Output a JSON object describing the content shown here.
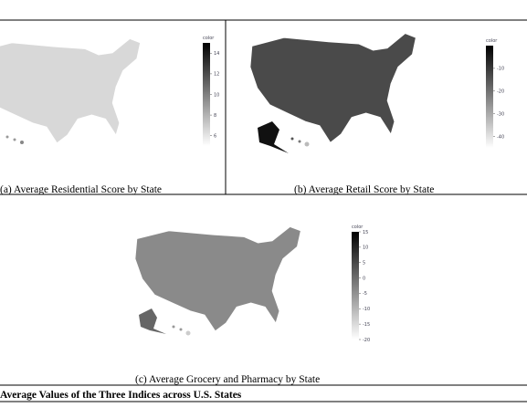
{
  "panels": [
    {
      "caption": "(a)  Average Residential Score by State",
      "colorbar": {
        "title": "color",
        "range": [
          5,
          15
        ],
        "ticks": [
          6,
          8,
          10,
          12,
          14
        ]
      }
    },
    {
      "caption": "(b)  Average Retail Score by State",
      "colorbar": {
        "title": "color",
        "range": [
          -45,
          0
        ],
        "ticks": [
          -10,
          -20,
          -30,
          -40
        ]
      }
    },
    {
      "caption": "(c)  Average Grocery and Pharmacy by State",
      "colorbar": {
        "title": "color",
        "range": [
          -20,
          15
        ],
        "ticks": [
          15,
          10,
          5,
          0,
          -5,
          -10,
          -15,
          -20
        ]
      }
    }
  ],
  "figure_caption": "Average Values of the Three Indices across U.S. States"
}
